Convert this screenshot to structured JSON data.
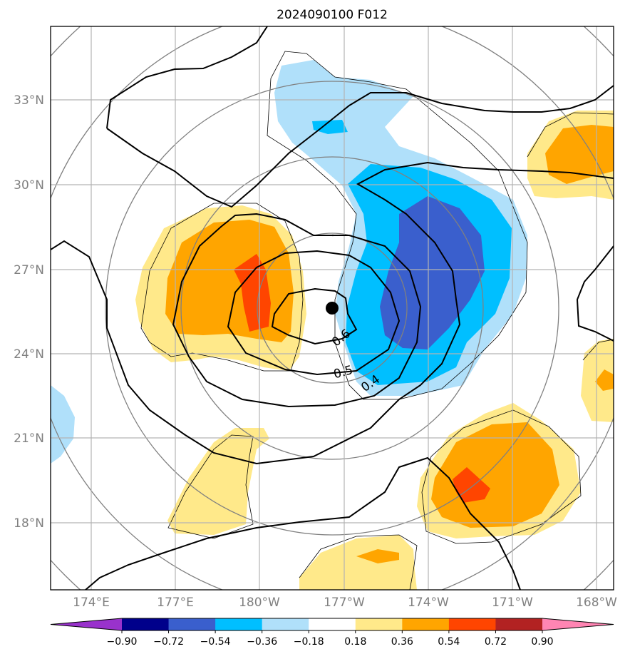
{
  "title": "2024090100 F012",
  "latitude_labels": [
    "33°N",
    "30°N",
    "27°N",
    "24°N",
    "21°N",
    "18°N"
  ],
  "longitude_labels": [
    "174°E",
    "177°E",
    "180°W",
    "177°W",
    "174°W",
    "171°W",
    "168°W"
  ],
  "contour_labels": [
    "0.6",
    "0.5",
    "0.4"
  ],
  "colorbar": {
    "ticks": [
      "−0.90",
      "−0.72",
      "−0.54",
      "−0.36",
      "−0.18",
      "0.18",
      "0.36",
      "0.54",
      "0.72",
      "0.90"
    ],
    "colors": [
      "#9932cc",
      "#00008b",
      "#3a5fcd",
      "#00bfff",
      "#b0e0fa",
      "#ffffff",
      "#ffe98a",
      "#ffa500",
      "#ff4500",
      "#b22222",
      "#ff85b3"
    ]
  },
  "storm_center_marker": "filled-circle"
}
